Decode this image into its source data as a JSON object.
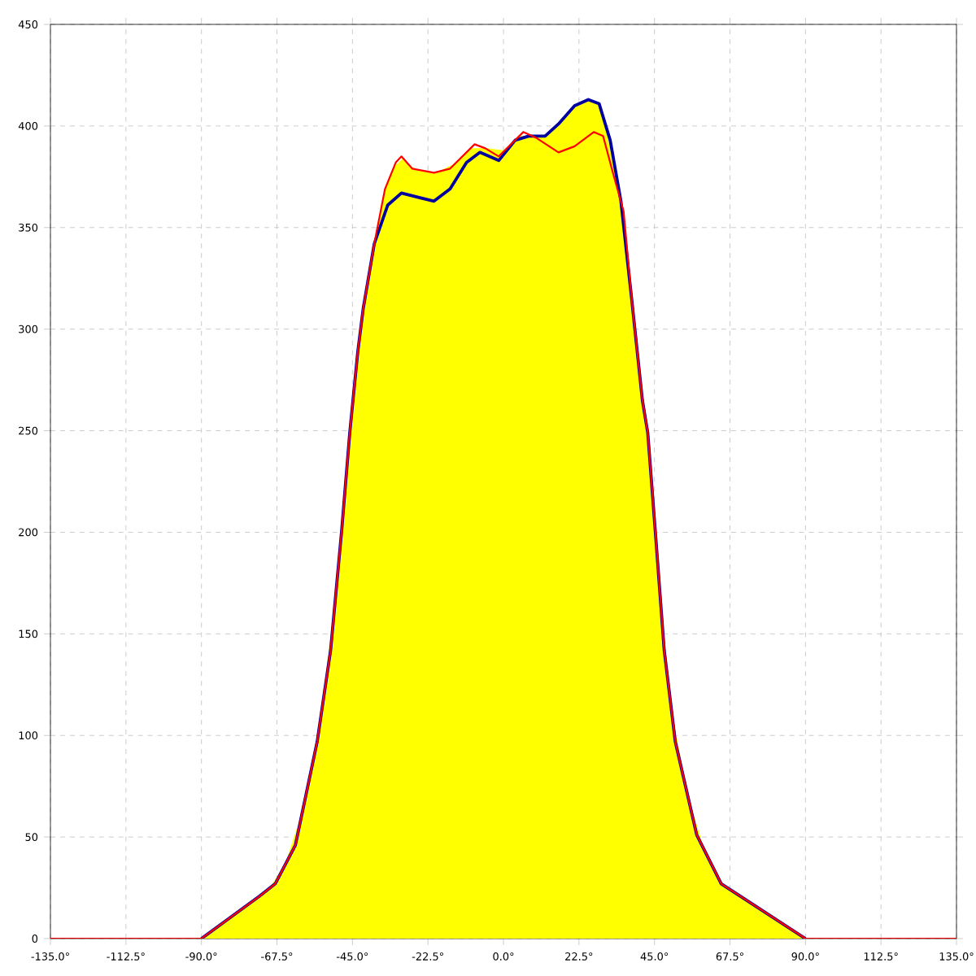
{
  "chart_data": {
    "type": "line",
    "xlim": [
      -135,
      135
    ],
    "ylim": [
      0,
      450
    ],
    "xticks": [
      {
        "value": -135,
        "label": "-135.0°"
      },
      {
        "value": -112.5,
        "label": "-112.5°"
      },
      {
        "value": -90,
        "label": "-90.0°"
      },
      {
        "value": -67.5,
        "label": "-67.5°"
      },
      {
        "value": -45,
        "label": "-45.0°"
      },
      {
        "value": -22.5,
        "label": "-22.5°"
      },
      {
        "value": 0,
        "label": "0.0°"
      },
      {
        "value": 22.5,
        "label": "22.5°"
      },
      {
        "value": 45,
        "label": "45.0°"
      },
      {
        "value": 67.5,
        "label": "67.5°"
      },
      {
        "value": 90,
        "label": "90.0°"
      },
      {
        "value": 112.5,
        "label": "112.5°"
      },
      {
        "value": 135,
        "label": "135.0°"
      }
    ],
    "yticks": [
      0,
      50,
      100,
      150,
      200,
      250,
      300,
      350,
      400,
      450
    ],
    "grid": true,
    "line_style": "solid",
    "marker": "none",
    "series": [
      {
        "color": "#0000a0",
        "x": [
          -90,
          -72.6,
          -68,
          -62,
          -55.5,
          -51.5,
          -48.2,
          -45.8,
          -43.4,
          -41.8,
          -38.5,
          -34.5,
          -30.4,
          -25.6,
          -20.7,
          -15.9,
          -11,
          -7,
          -1.4,
          3.5,
          7.5,
          12.4,
          16.4,
          21.2,
          25.3,
          28.5,
          31.8,
          35,
          38.2,
          41.4,
          43,
          45.5,
          47.9,
          51.2,
          57.6,
          64.9,
          70.5,
          90
        ],
        "values": [
          0,
          21,
          27,
          46,
          97,
          142,
          201,
          249,
          289,
          310,
          342,
          361,
          367,
          365,
          363,
          369,
          382,
          387,
          383,
          393,
          395,
          395,
          401,
          410,
          413,
          411,
          393,
          363,
          315,
          265,
          249,
          195,
          142,
          97,
          51,
          27,
          21,
          0
        ]
      },
      {
        "color": "#ff0000",
        "x": [
          -135,
          -90,
          -72.6,
          -68,
          -62,
          -55.5,
          -51.5,
          -48.2,
          -45.8,
          -43.4,
          -41.8,
          -38.5,
          -35.3,
          -32.1,
          -30.4,
          -27.2,
          -20.7,
          -15.9,
          -8.6,
          -5.4,
          -1.4,
          5.9,
          9.9,
          16.4,
          21.2,
          26.9,
          29.7,
          32.6,
          35.8,
          38.2,
          41.4,
          43,
          45.5,
          47.9,
          51.2,
          57.6,
          64.9,
          70.5,
          90,
          135
        ],
        "values": [
          0,
          0,
          21,
          27,
          46,
          97,
          142,
          201,
          249,
          289,
          310,
          342,
          369,
          382,
          385,
          379,
          377,
          379,
          391,
          389,
          385,
          397,
          394,
          387,
          390,
          397,
          395,
          377,
          358,
          315,
          265,
          249,
          195,
          142,
          97,
          51,
          27,
          21,
          0,
          0
        ]
      },
      {
        "type": "area",
        "color": "#ffff00",
        "x": [
          -135,
          -90,
          -80,
          -70,
          -65,
          -60,
          -55,
          -50,
          -47.5,
          -45,
          -42.5,
          -40,
          -37.5,
          -35,
          -32.5,
          -30,
          -27.5,
          -25,
          -20,
          -15,
          -10,
          -5,
          0,
          5,
          10,
          15,
          20,
          22.5,
          25,
          27.5,
          30,
          32.5,
          35,
          37.5,
          40,
          42.5,
          45,
          47.5,
          50,
          55,
          60,
          65,
          70,
          80,
          90,
          135
        ],
        "values": [
          0,
          0,
          12,
          24,
          37,
          62,
          103,
          169,
          215,
          262,
          301,
          327,
          350,
          370,
          380,
          384,
          380,
          378,
          377,
          381,
          389,
          389,
          388,
          395,
          394,
          398,
          408,
          411,
          413,
          412,
          404,
          382,
          363,
          325,
          287,
          254,
          206,
          151,
          113,
          70,
          43,
          27,
          21,
          11,
          0,
          0
        ]
      }
    ]
  }
}
